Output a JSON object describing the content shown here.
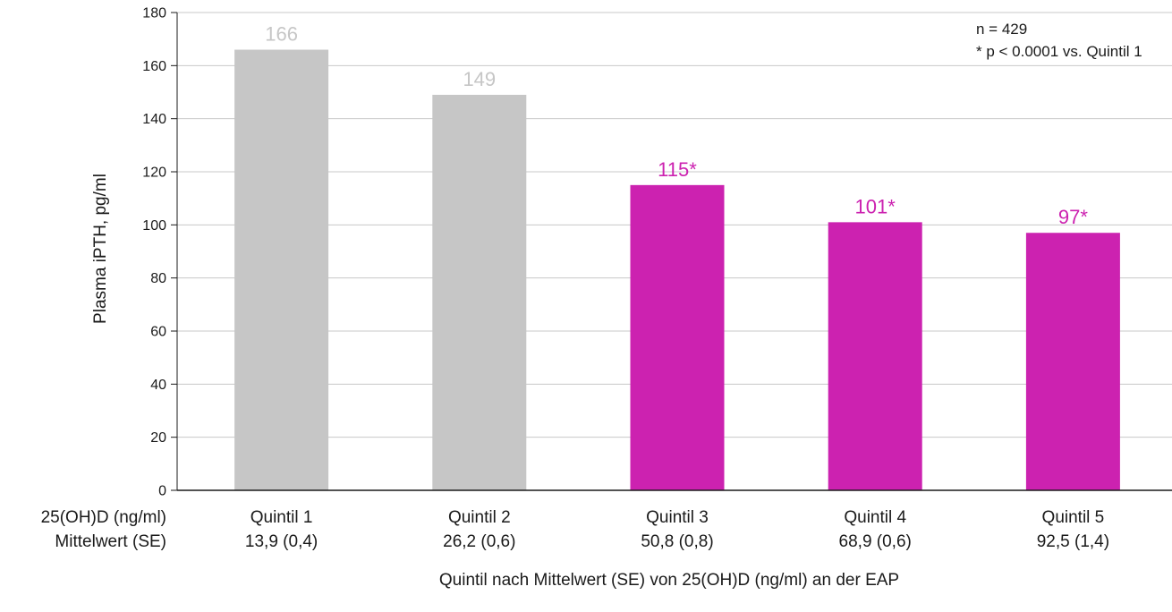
{
  "chart_data": {
    "type": "bar",
    "categories": [
      "Quintil 1",
      "Quintil 2",
      "Quintil 3",
      "Quintil 4",
      "Quintil 5"
    ],
    "category_sublabels": [
      "13,9 (0,4)",
      "26,2 (0,6)",
      "50,8 (0,8)",
      "68,9 (0,6)",
      "92,5 (1,4)"
    ],
    "values": [
      166,
      149,
      115,
      101,
      97
    ],
    "value_labels": [
      "166",
      "149",
      "115*",
      "101*",
      "97*"
    ],
    "bar_colors": [
      "#c6c6c6",
      "#c6c6c6",
      "#cc22b0",
      "#cc22b0",
      "#cc22b0"
    ],
    "value_label_colors": [
      "#c6c6c6",
      "#c6c6c6",
      "#cc22b0",
      "#cc22b0",
      "#cc22b0"
    ],
    "ylabel": "Plasma iPTH, pg/ml",
    "xlabel": "Quintil nach Mittelwert (SE) von 25(OH)D (ng/ml) an der EAP",
    "row_header_1": "25(OH)D (ng/ml)",
    "row_header_2": "Mittelwert (SE)",
    "ylim": [
      0,
      180
    ],
    "yticks": [
      0,
      20,
      40,
      60,
      80,
      100,
      120,
      140,
      160,
      180
    ],
    "grid": true,
    "annotations": [
      "n = 429",
      "* p < 0.0001 vs. Quintil 1"
    ],
    "annotation_placement": "top-right"
  }
}
